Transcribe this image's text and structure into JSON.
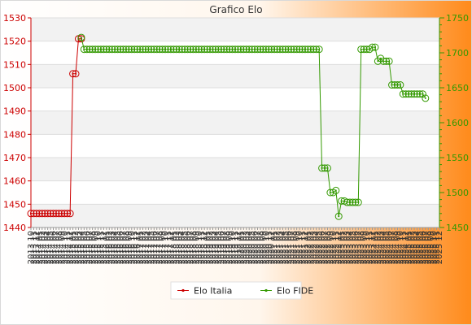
{
  "chart_data": {
    "type": "line",
    "title": "Grafico Elo",
    "y_left": {
      "ticks": [
        1440,
        1450,
        1460,
        1470,
        1480,
        1490,
        1500,
        1510,
        1520,
        1530
      ],
      "ylim": [
        1440,
        1530
      ],
      "color": "#cc0000"
    },
    "y_right": {
      "ticks": [
        1450,
        1500,
        1550,
        1600,
        1650,
        1700,
        1750
      ],
      "ylim": [
        1450,
        1750
      ],
      "color": "#339900"
    },
    "grid": true,
    "legend_position": "bottom-center",
    "series": [
      {
        "name": "Elo Italia",
        "axis": "left",
        "color": "#cc0000",
        "values": [
          1446,
          1446,
          1446,
          1446,
          1446,
          1446,
          1446,
          1446,
          1446,
          1446,
          1446,
          1446,
          1446,
          1446,
          1446,
          1506,
          1506,
          1521,
          1521
        ]
      },
      {
        "name": "Elo FIDE",
        "axis": "right",
        "color": "#339900",
        "values": [
          1722,
          1705,
          1705,
          1705,
          1705,
          1705,
          1705,
          1705,
          1705,
          1705,
          1705,
          1705,
          1705,
          1705,
          1705,
          1705,
          1705,
          1705,
          1705,
          1705,
          1705,
          1705,
          1705,
          1705,
          1705,
          1705,
          1705,
          1705,
          1705,
          1705,
          1705,
          1705,
          1705,
          1705,
          1705,
          1705,
          1705,
          1705,
          1705,
          1705,
          1705,
          1705,
          1705,
          1705,
          1705,
          1705,
          1705,
          1705,
          1705,
          1705,
          1705,
          1705,
          1705,
          1705,
          1705,
          1705,
          1705,
          1705,
          1705,
          1705,
          1705,
          1705,
          1705,
          1705,
          1705,
          1705,
          1705,
          1705,
          1705,
          1705,
          1705,
          1705,
          1705,
          1705,
          1705,
          1705,
          1705,
          1705,
          1705,
          1705,
          1705,
          1705,
          1705,
          1705,
          1705,
          1705,
          1535,
          1535,
          1535,
          1500,
          1500,
          1503,
          1466,
          1488,
          1488,
          1486,
          1486,
          1486,
          1486,
          1486,
          1705,
          1705,
          1705,
          1705,
          1708,
          1708,
          1688,
          1692,
          1688,
          1688,
          1688,
          1654,
          1654,
          1654,
          1654,
          1641,
          1641,
          1641,
          1641,
          1641,
          1641,
          1641,
          1641,
          1635
        ],
        "start_index": 18
      }
    ],
    "x_ticks": [
      "2013 10",
      "2013 11",
      "2013 12",
      "2014 01",
      "2014 02",
      "2014 03",
      "2014 04",
      "2014 05",
      "2014 06",
      "2014 07",
      "2014 08",
      "2014 09",
      "2014 10",
      "2014 11",
      "2014 12",
      "2015 01",
      "2015 02",
      "2015 03",
      "2015 04",
      "2015 05",
      "2015 06",
      "2015 07",
      "2015 08",
      "2015 09",
      "2015 10",
      "2015 11",
      "2015 12",
      "2016 01",
      "2016 02",
      "2016 03",
      "2016 04",
      "2016 05",
      "2016 06",
      "2016 07",
      "2016 08",
      "2016 09",
      "2016 10",
      "2016 11",
      "2016 12",
      "2017 01",
      "2017 02",
      "2017 03",
      "2017 04",
      "2017 05",
      "2017 06",
      "2017 07",
      "2017 08",
      "2017 09",
      "2017 10",
      "2017 11",
      "2017 12",
      "2018 01",
      "2018 02",
      "2018 03",
      "2018 04",
      "2018 05",
      "2018 06",
      "2018 07",
      "2018 08",
      "2018 09",
      "2018 10",
      "2018 11",
      "2018 12",
      "2019 01",
      "2019 02",
      "2019 03",
      "2019 04",
      "2019 05",
      "2019 06",
      "2019 07",
      "2019 08",
      "2019 09",
      "2019 10",
      "2019 11",
      "2019 12",
      "2020 01",
      "2020 02",
      "2020 03",
      "2020 04",
      "2020 05",
      "2020 06",
      "2020 07",
      "2020 08",
      "2020 09",
      "2020 10",
      "2020 11",
      "2020 12",
      "2021 01",
      "2021 02",
      "2021 03",
      "2021 04",
      "2021 05",
      "2021 06",
      "2021 07",
      "2021 08",
      "2021 09",
      "2021 10",
      "2021 11",
      "2021 12",
      "2022 01",
      "2022 02",
      "2022 03",
      "2022 04",
      "2022 05",
      "2022 06",
      "2022 07",
      "2022 08",
      "2022 09",
      "2022 10",
      "2022 11",
      "2022 12",
      "2023 01",
      "2023 02",
      "2023 03",
      "2023 04",
      "2023 05",
      "2023 06",
      "2023 07",
      "2023 08",
      "2023 09",
      "2023 10",
      "2023 11",
      "2023 12",
      "2024 01",
      "2024 02",
      "2024 03",
      "2024 04",
      "2024 05",
      "2024 06",
      "2024 07",
      "2024 08",
      "2024 09",
      "2024 10",
      "2024 11",
      "2024 12",
      "2025 01",
      "2025 02",
      "2025 03",
      "2025 04",
      "2025 05",
      "2025 06",
      "2025 07",
      "2025 08",
      "2025 09",
      "2025 10",
      "2025 11",
      "2025 12"
    ]
  }
}
